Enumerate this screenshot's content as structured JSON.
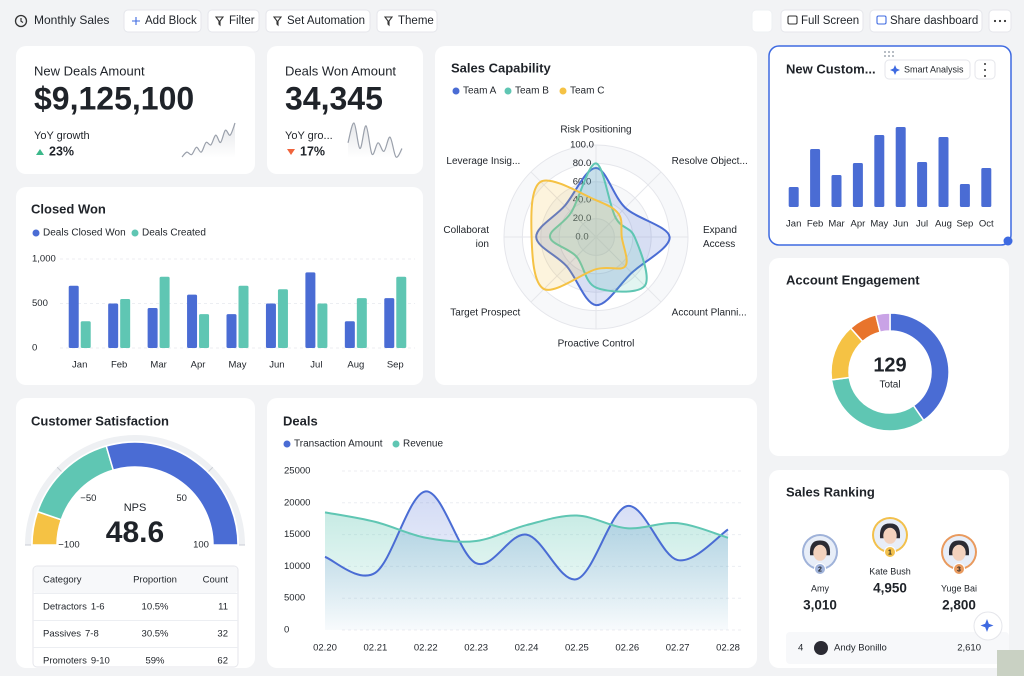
{
  "toolbar": {
    "title": "Monthly Sales",
    "actions": [
      "Add Block",
      "Filter",
      "Set Automation",
      "Theme"
    ],
    "view_actions": [
      "Full Screen",
      "Share dashboard"
    ]
  },
  "kpi_cards": [
    {
      "title": "New Deals Amount",
      "value": "$9,125,100",
      "growth_label": "YoY growth",
      "growth": "23%",
      "trend": "up",
      "sparkline": [
        3,
        5,
        4,
        7,
        5,
        9,
        8,
        12,
        9,
        14,
        12,
        17
      ]
    },
    {
      "title": "Deals Won Amount",
      "value": "34,345",
      "growth_label": "YoY gro...",
      "growth": "17%",
      "trend": "down",
      "sparkline": [
        9,
        16,
        7,
        15,
        5,
        9,
        6,
        11,
        4,
        7
      ]
    }
  ],
  "chart_data": [
    {
      "type": "bar",
      "title": "Closed Won",
      "categories": [
        "Jan",
        "Feb",
        "Mar",
        "Apr",
        "May",
        "Jun",
        "Jul",
        "Aug",
        "Sep"
      ],
      "series": [
        {
          "name": "Deals Closed Won",
          "color": "#4a6cd4",
          "values": [
            700,
            500,
            450,
            600,
            380,
            500,
            850,
            300,
            560
          ]
        },
        {
          "name": "Deals Created",
          "color": "#5fc6b3",
          "values": [
            300,
            550,
            800,
            380,
            700,
            660,
            500,
            560,
            800
          ]
        }
      ],
      "ylim": [
        0,
        1000
      ],
      "yticks": [
        0,
        500,
        {
          "value": 1000,
          "label": "1,000"
        }
      ],
      "grid": true
    },
    {
      "type": "radar",
      "title": "Sales Capability",
      "indicators": [
        "Risk Positioning",
        "Resolve Object...",
        "Expand Access",
        "Account Planni...",
        "Proactive Control",
        "Target Prospect",
        "Collaboration",
        "Leverage Insig..."
      ],
      "series": [
        {
          "name": "Team A",
          "color": "#4a6cd4",
          "values": [
            75,
            45,
            80,
            55,
            74,
            45,
            65,
            48
          ]
        },
        {
          "name": "Team B",
          "color": "#5fc6b3",
          "values": [
            80,
            30,
            42,
            75,
            55,
            30,
            50,
            38
          ]
        },
        {
          "name": "Team C",
          "color": "#f5c244",
          "values": [
            40,
            35,
            28,
            45,
            35,
            80,
            70,
            85
          ]
        }
      ],
      "rlim": [
        0,
        100
      ],
      "rticks": [
        {
          "value": 0,
          "label": "0.0"
        },
        {
          "value": 20,
          "label": "20.0"
        },
        {
          "value": 40,
          "label": "40.0"
        },
        {
          "value": 60,
          "label": "60.0"
        },
        {
          "value": 80,
          "label": "80.0"
        },
        {
          "value": 100,
          "label": "100.0"
        }
      ]
    },
    {
      "type": "bar",
      "title": "New Custom...",
      "action": "Smart Analysis",
      "categories": [
        "Jan",
        "Feb",
        "Mar",
        "Apr",
        "May",
        "Jun",
        "Jul",
        "Aug",
        "Sep",
        "Oct"
      ],
      "values": [
        20,
        58,
        32,
        44,
        72,
        80,
        45,
        70,
        23,
        39
      ],
      "color": "#4a6cd4",
      "selected": true
    },
    {
      "type": "donut",
      "title": "Account Engagement",
      "values": [
        52,
        42,
        20,
        10,
        5
      ],
      "colors": [
        "#4a6cd4",
        "#5fc6b3",
        "#f5c244",
        "#e8742c",
        "#c9a3e6"
      ],
      "total": 129,
      "total_label": "Total"
    },
    {
      "type": "gauge",
      "title": "Customer Satisfaction",
      "label": "NPS",
      "value": 48.6,
      "xlim": [
        -100,
        100
      ],
      "xticks": [
        {
          "value": -100,
          "label": "−100"
        },
        {
          "value": -50,
          "label": "−50"
        },
        50,
        100
      ],
      "values": [
        10.5,
        30.5,
        59
      ],
      "colors": [
        "#f5c244",
        "#5fc6b3",
        "#4a6cd4"
      ]
    },
    {
      "type": "line",
      "title": "Deals",
      "categories": [
        "02.20",
        "02.21",
        "02.22",
        "02.23",
        "02.24",
        "02.25",
        "02.26",
        "02.27",
        "02.28"
      ],
      "series": [
        {
          "name": "Transaction Amount",
          "color": "#4a6cd4",
          "values": [
            11500,
            9000,
            21800,
            10500,
            15000,
            8000,
            19500,
            11000,
            15800
          ]
        },
        {
          "name": "Revenue",
          "color": "#5fc6b3",
          "values": [
            18500,
            17000,
            14500,
            14000,
            16500,
            18000,
            16000,
            16800,
            14500
          ]
        }
      ],
      "ylim": [
        0,
        25000
      ],
      "yticks": [
        0,
        5000,
        10000,
        15000,
        20000,
        25000
      ],
      "grid": true
    }
  ],
  "satisfaction_table": {
    "columns": [
      "Category",
      "Proportion",
      "Count"
    ],
    "rows": [
      {
        "category": "Detractors",
        "range": "1-6",
        "proportion": "10.5%",
        "count": "11"
      },
      {
        "category": "Passives",
        "range": "7-8",
        "proportion": "30.5%",
        "count": "32"
      },
      {
        "category": "Promoters",
        "range": "9-10",
        "proportion": "59%",
        "count": "62"
      }
    ]
  },
  "sales_ranking": {
    "title": "Sales Ranking",
    "podium": [
      {
        "rank": "2",
        "name": "Amy",
        "amount": "3,010"
      },
      {
        "rank": "1",
        "name": "Kate Bush",
        "amount": "4,950"
      },
      {
        "rank": "3",
        "name": "Yuge Bai",
        "amount": "2,800"
      }
    ],
    "list": [
      {
        "rank": "4",
        "name": "Andy Bonillo",
        "amount": "2,610"
      }
    ]
  }
}
